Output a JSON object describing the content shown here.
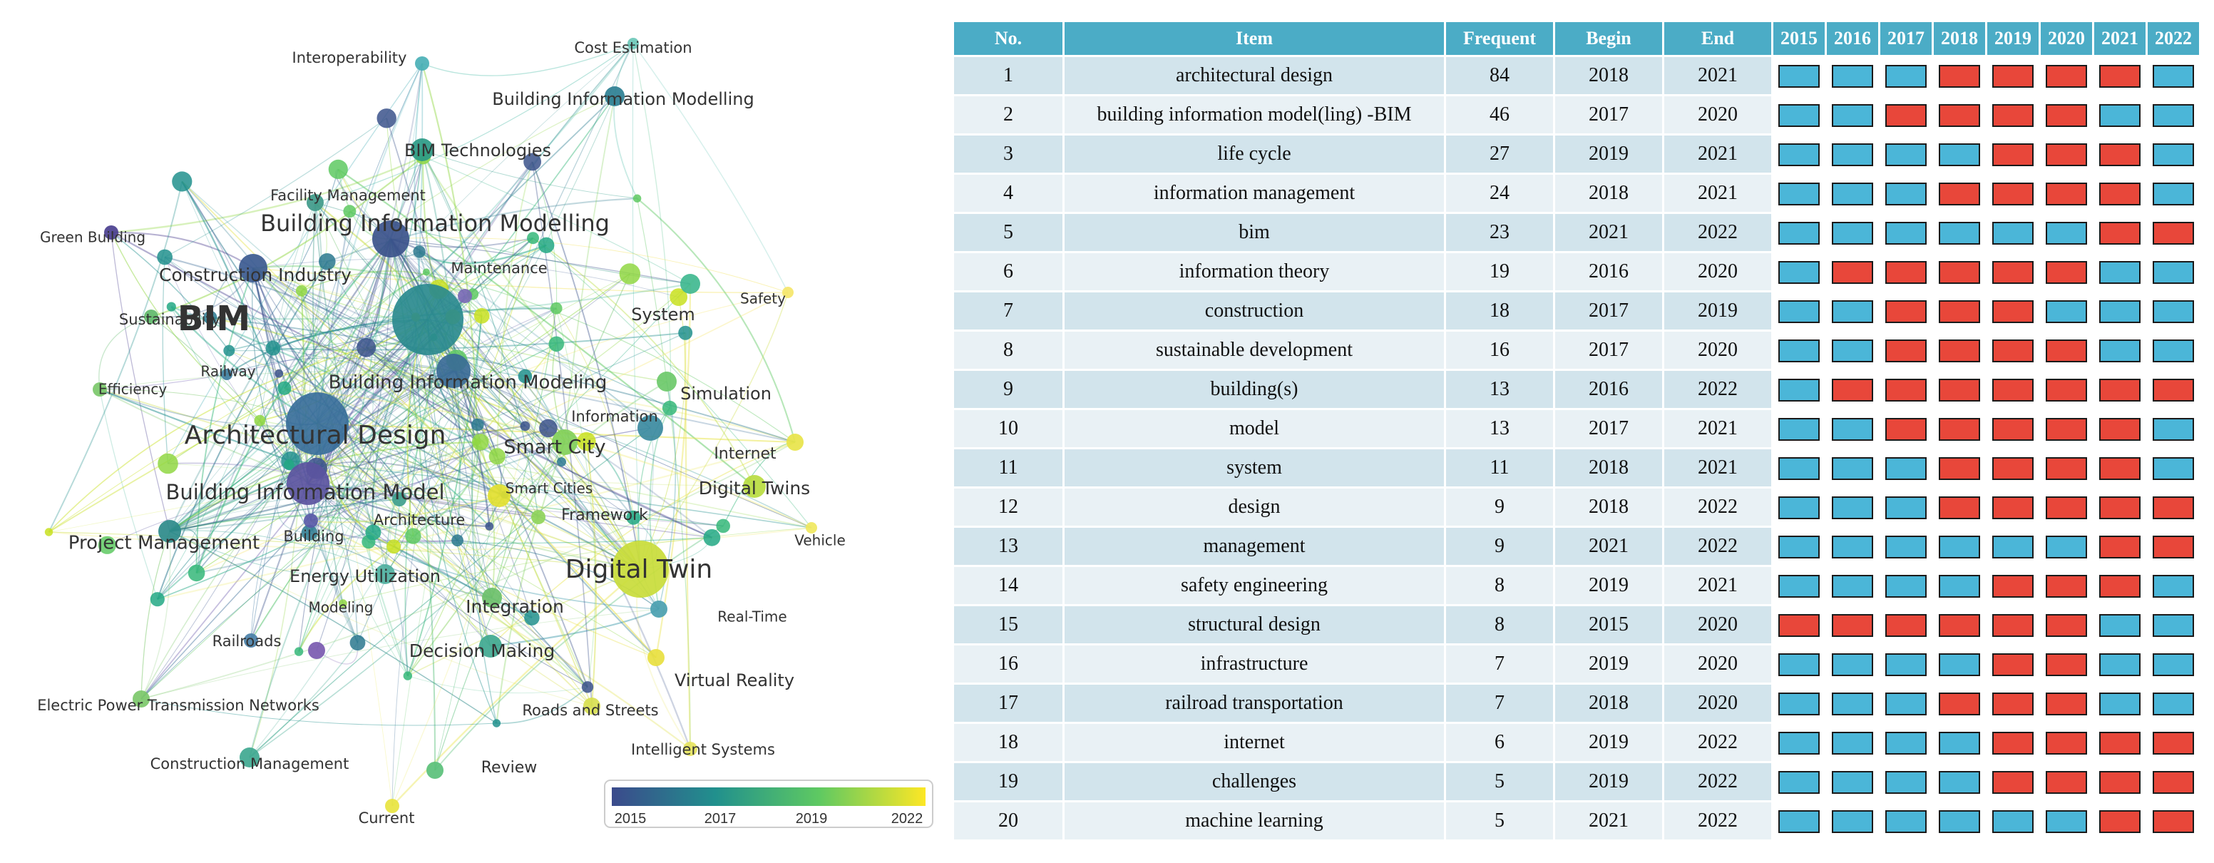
{
  "network": {
    "colors": {
      "y2015": "#3b4a8c",
      "y2017": "#21908d",
      "y2019": "#5ec962",
      "y2022": "#fde725"
    },
    "legend": {
      "ticks": [
        "2015",
        "2017",
        "2019",
        "2022"
      ]
    },
    "nodes": [
      {
        "label": "BIM",
        "color": "#2a8a8e"
      },
      {
        "label": "Architectural Design",
        "color": "#3a6f9a"
      },
      {
        "label": "Building Information Modelling",
        "color": "#3b528b"
      },
      {
        "label": "Building Information Model",
        "color": "#5b54a0"
      },
      {
        "label": "Digital Twin",
        "color": "#c9dc3a"
      },
      {
        "label": "Construction Industry",
        "color": "#3b5a90"
      },
      {
        "label": "Building Information Modeling",
        "color": "#3a6b96"
      },
      {
        "label": "Project Management",
        "color": "#2d8a8a"
      },
      {
        "label": "BIM Technologies",
        "color": "#2b9a86"
      },
      {
        "label": "Building Information Modelling",
        "color": "#2d7f92"
      },
      {
        "label": "Interoperability",
        "color": "#4ab0b6"
      },
      {
        "label": "Cost Estimation",
        "color": "#6cc8b8"
      },
      {
        "label": "Facility Management",
        "color": "#3f9a8a"
      },
      {
        "label": "Green Building",
        "color": "#4a3f8f"
      },
      {
        "label": "Maintenance",
        "color": "#7a6ab5"
      },
      {
        "label": "Sustainability",
        "color": "#5fb96a"
      },
      {
        "label": "Railway",
        "color": "#3f7fa0"
      },
      {
        "label": "Efficiency",
        "color": "#7bc86a"
      },
      {
        "label": "System",
        "color": "#40b890"
      },
      {
        "label": "Safety",
        "color": "#f5e66a"
      },
      {
        "label": "Simulation",
        "color": "#6cc96a"
      },
      {
        "label": "Information",
        "color": "#3b8aa0"
      },
      {
        "label": "Smart City",
        "color": "#82d05a"
      },
      {
        "label": "Internet",
        "color": "#e8e44a"
      },
      {
        "label": "Digital Twins",
        "color": "#b8dc40"
      },
      {
        "label": "Smart Cities",
        "color": "#e2e030"
      },
      {
        "label": "Framework",
        "color": "#8fd45a"
      },
      {
        "label": "Architecture",
        "color": "#3fa08c"
      },
      {
        "label": "Building",
        "color": "#5a5aa8"
      },
      {
        "label": "Vehicle",
        "color": "#f0e860"
      },
      {
        "label": "Energy Utilization",
        "color": "#4fb0a0"
      },
      {
        "label": "Integration",
        "color": "#6cc06a"
      },
      {
        "label": "Modeling",
        "color": "#7a5ab0"
      },
      {
        "label": "Railroads",
        "color": "#4a80a8"
      },
      {
        "label": "Real-Time",
        "color": "#4aa0b0"
      },
      {
        "label": "Decision Making",
        "color": "#3fa890"
      },
      {
        "label": "Virtual Reality",
        "color": "#e8e040"
      },
      {
        "label": "Electric Power Transmission Networks",
        "color": "#7cc86a"
      },
      {
        "label": "Roads and Streets",
        "color": "#d8e050"
      },
      {
        "label": "Intelligent Systems",
        "color": "#e6e460"
      },
      {
        "label": "Construction Management",
        "color": "#3fa890"
      },
      {
        "label": "Review",
        "color": "#5ac07a"
      },
      {
        "label": "Current",
        "color": "#e8e440"
      }
    ]
  },
  "table": {
    "headers": {
      "no": "No.",
      "item": "Item",
      "frequent": "Frequent",
      "begin": "Begin",
      "end": "End"
    },
    "years": [
      "2015",
      "2016",
      "2017",
      "2018",
      "2019",
      "2020",
      "2021",
      "2022"
    ],
    "colors": {
      "active": "#e8473a",
      "inactive": "#4bb6d8"
    },
    "rows": [
      {
        "no": "1",
        "item": "architectural design",
        "frequent": "84",
        "begin": "2018",
        "end": "2021",
        "bars": [
          0,
          0,
          0,
          1,
          1,
          1,
          1,
          0
        ]
      },
      {
        "no": "2",
        "item": "building information model(ling) -BIM",
        "frequent": "46",
        "begin": "2017",
        "end": "2020",
        "bars": [
          0,
          0,
          1,
          1,
          1,
          1,
          0,
          0
        ]
      },
      {
        "no": "3",
        "item": "life cycle",
        "frequent": "27",
        "begin": "2019",
        "end": "2021",
        "bars": [
          0,
          0,
          0,
          0,
          1,
          1,
          1,
          0
        ]
      },
      {
        "no": "4",
        "item": "information management",
        "frequent": "24",
        "begin": "2018",
        "end": "2021",
        "bars": [
          0,
          0,
          0,
          1,
          1,
          1,
          1,
          0
        ]
      },
      {
        "no": "5",
        "item": "bim",
        "frequent": "23",
        "begin": "2021",
        "end": "2022",
        "bars": [
          0,
          0,
          0,
          0,
          0,
          0,
          1,
          1
        ]
      },
      {
        "no": "6",
        "item": "information theory",
        "frequent": "19",
        "begin": "2016",
        "end": "2020",
        "bars": [
          0,
          1,
          1,
          1,
          1,
          1,
          0,
          0
        ]
      },
      {
        "no": "7",
        "item": "construction",
        "frequent": "18",
        "begin": "2017",
        "end": "2019",
        "bars": [
          0,
          0,
          1,
          1,
          1,
          0,
          0,
          0
        ]
      },
      {
        "no": "8",
        "item": "sustainable development",
        "frequent": "16",
        "begin": "2017",
        "end": "2020",
        "bars": [
          0,
          0,
          1,
          1,
          1,
          1,
          0,
          0
        ]
      },
      {
        "no": "9",
        "item": "building(s)",
        "frequent": "13",
        "begin": "2016",
        "end": "2022",
        "bars": [
          0,
          1,
          1,
          1,
          1,
          1,
          1,
          1
        ]
      },
      {
        "no": "10",
        "item": "model",
        "frequent": "13",
        "begin": "2017",
        "end": "2021",
        "bars": [
          0,
          0,
          1,
          1,
          1,
          1,
          1,
          0
        ]
      },
      {
        "no": "11",
        "item": "system",
        "frequent": "11",
        "begin": "2018",
        "end": "2021",
        "bars": [
          0,
          0,
          0,
          1,
          1,
          1,
          1,
          0
        ]
      },
      {
        "no": "12",
        "item": "design",
        "frequent": "9",
        "begin": "2018",
        "end": "2022",
        "bars": [
          0,
          0,
          0,
          1,
          1,
          1,
          1,
          1
        ]
      },
      {
        "no": "13",
        "item": "management",
        "frequent": "9",
        "begin": "2021",
        "end": "2022",
        "bars": [
          0,
          0,
          0,
          0,
          0,
          0,
          1,
          1
        ]
      },
      {
        "no": "14",
        "item": "safety engineering",
        "frequent": "8",
        "begin": "2019",
        "end": "2021",
        "bars": [
          0,
          0,
          0,
          0,
          1,
          1,
          1,
          0
        ]
      },
      {
        "no": "15",
        "item": "structural design",
        "frequent": "8",
        "begin": "2015",
        "end": "2020",
        "bars": [
          1,
          1,
          1,
          1,
          1,
          1,
          0,
          0
        ]
      },
      {
        "no": "16",
        "item": "infrastructure",
        "frequent": "7",
        "begin": "2019",
        "end": "2020",
        "bars": [
          0,
          0,
          0,
          0,
          1,
          1,
          0,
          0
        ]
      },
      {
        "no": "17",
        "item": "railroad transportation",
        "frequent": "7",
        "begin": "2018",
        "end": "2020",
        "bars": [
          0,
          0,
          0,
          1,
          1,
          1,
          0,
          0
        ]
      },
      {
        "no": "18",
        "item": "internet",
        "frequent": "6",
        "begin": "2019",
        "end": "2022",
        "bars": [
          0,
          0,
          0,
          0,
          1,
          1,
          1,
          1
        ]
      },
      {
        "no": "19",
        "item": "challenges",
        "frequent": "5",
        "begin": "2019",
        "end": "2022",
        "bars": [
          0,
          0,
          0,
          0,
          1,
          1,
          1,
          1
        ]
      },
      {
        "no": "20",
        "item": "machine learning",
        "frequent": "5",
        "begin": "2021",
        "end": "2022",
        "bars": [
          0,
          0,
          0,
          0,
          0,
          0,
          1,
          1
        ]
      }
    ]
  }
}
